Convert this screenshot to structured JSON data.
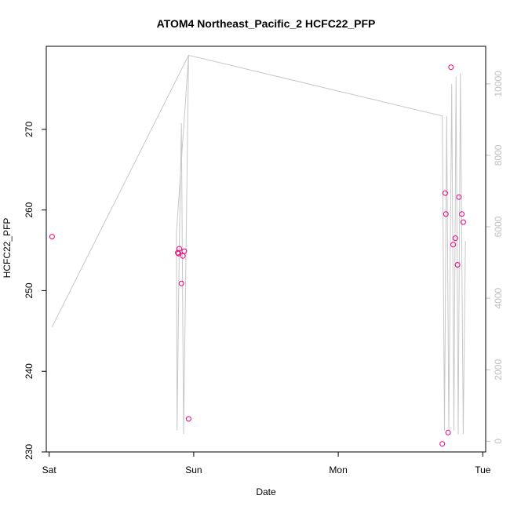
{
  "chart_data": {
    "type": "scatter",
    "title": "ATOM4 Northeast_Pacific_2 HCFC22_PFP",
    "xlabel": "Date",
    "ylabel": "HCFC22_PFP",
    "x_unit": "days since Sat 00:00",
    "xlim": [
      -0.02,
      3.02
    ],
    "ylim": [
      230.0,
      280.3
    ],
    "y2lim": [
      -300,
      11050
    ],
    "x_ticks": [
      {
        "value": 0,
        "label": "Sat"
      },
      {
        "value": 1,
        "label": "Sun"
      },
      {
        "value": 2,
        "label": "Mon"
      },
      {
        "value": 3,
        "label": "Tue"
      }
    ],
    "y_ticks": [
      230,
      240,
      250,
      260,
      270
    ],
    "y2_ticks": [
      0,
      2000,
      4000,
      6000,
      8000,
      10000
    ],
    "colors": {
      "points": "#e6007e",
      "line": "#c8c8c8",
      "right_axis": "#c0c0c0",
      "frame": "#000000"
    },
    "series": [
      {
        "type": "scatter",
        "axis": "left",
        "x": [
          0.02,
          0.89,
          0.895,
          0.9,
          0.915,
          0.925,
          0.935,
          0.965,
          2.72,
          2.74,
          2.745,
          2.76,
          2.78,
          2.795,
          2.81,
          2.825,
          2.835,
          2.855,
          2.865
        ],
        "y": [
          256.7,
          254.7,
          254.6,
          255.2,
          250.9,
          254.3,
          254.9,
          234.1,
          231.0,
          262.1,
          259.5,
          232.4,
          277.7,
          255.7,
          256.5,
          253.2,
          261.6,
          259.5,
          258.5
        ]
      },
      {
        "type": "line",
        "axis": "right",
        "x": [
          0.02,
          0.965,
          0.88,
          0.885,
          0.9,
          0.915,
          0.93,
          0.965,
          2.72,
          2.735,
          2.75,
          2.765,
          2.785,
          2.8,
          2.815,
          2.83,
          2.845,
          2.865,
          2.88
        ],
        "y": [
          3200,
          10800,
          5800,
          300,
          5500,
          8900,
          200,
          10800,
          9100,
          300,
          9100,
          300,
          10000,
          300,
          10200,
          200,
          10300,
          200,
          5600
        ]
      }
    ]
  }
}
